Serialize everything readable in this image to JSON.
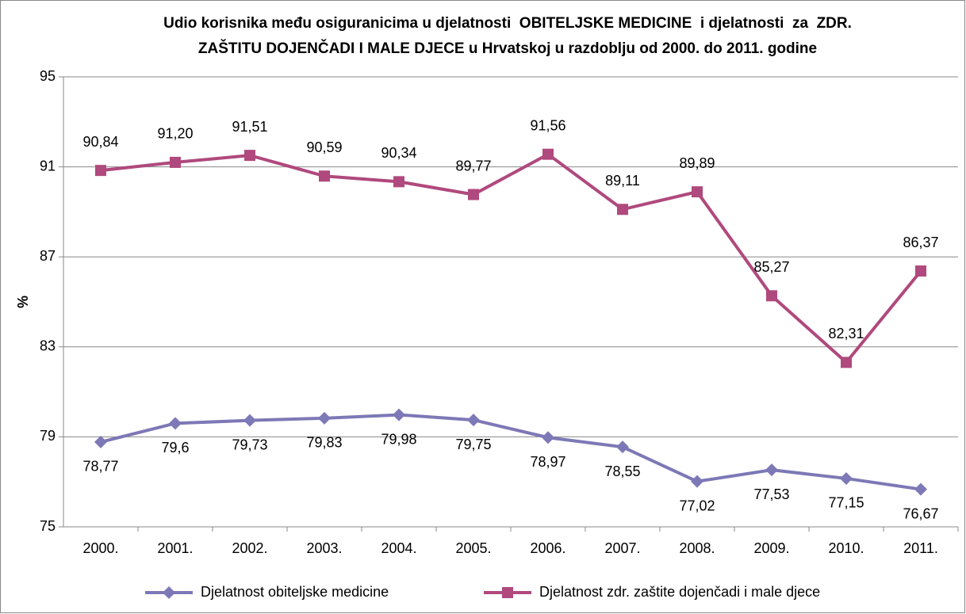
{
  "chart_data": {
    "type": "line",
    "title": [
      "Udio korisnika među osiguranicima u djelatnosti  OBITELJSKE MEDICINE  i djelatnosti  za  ZDR.",
      "ZAŠTITU DOJENČADI I MALE DJECE u Hrvatskoj u razdoblju od 2000. do 2011. godine"
    ],
    "y_label": "%",
    "categories": [
      "2000.",
      "2001.",
      "2002.",
      "2003.",
      "2004.",
      "2005.",
      "2006.",
      "2007.",
      "2008.",
      "2009.",
      "2010.",
      "2011."
    ],
    "series": [
      {
        "name": "Djelatnost obiteljske medicine",
        "color": "#7d78b6",
        "marker": "diamond",
        "values": [
          78.77,
          79.6,
          79.73,
          79.83,
          79.98,
          79.75,
          78.97,
          78.55,
          77.02,
          77.53,
          77.15,
          76.67
        ],
        "value_labels": [
          "78,77",
          "79,6",
          "79,73",
          "79,83",
          "79,98",
          "79,75",
          "78,97",
          "78,55",
          "77,02",
          "77,53",
          "77,15",
          "76,67"
        ]
      },
      {
        "name": "Djelatnost zdr. zaštite dojenčadi i male djece",
        "color": "#b0497d",
        "marker": "square",
        "values": [
          90.84,
          91.2,
          91.51,
          90.59,
          90.34,
          89.77,
          91.56,
          89.11,
          89.89,
          85.27,
          82.31,
          86.37
        ],
        "value_labels": [
          "90,84",
          "91,20",
          "91,51",
          "90,59",
          "90,34",
          "89,77",
          "91,56",
          "89,11",
          "89,89",
          "85,27",
          "82,31",
          "86,37"
        ]
      }
    ],
    "ylim": [
      75,
      95
    ],
    "yticks": [
      75,
      79,
      83,
      87,
      91,
      95
    ],
    "grid": true,
    "legend": "bottom"
  }
}
